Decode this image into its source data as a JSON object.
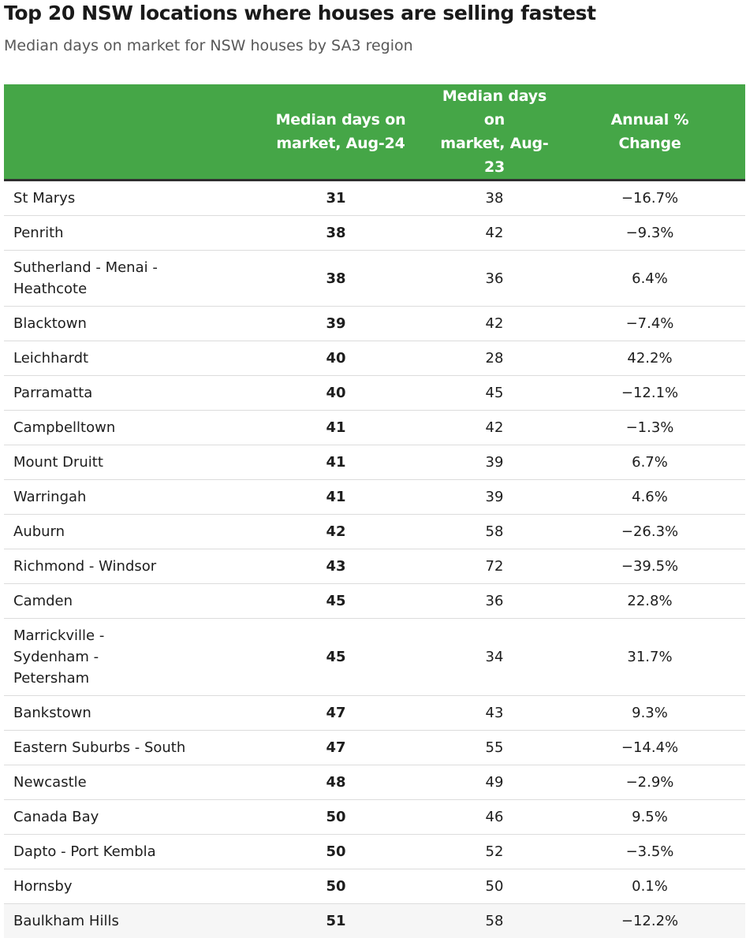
{
  "title": "Top 20 NSW locations where houses are selling fastest",
  "subtitle": "Median days on market for NSW houses by SA3 region",
  "colors": {
    "header_bg": "#45a647",
    "header_text": "#ffffff",
    "header_rule": "#2f2f2f",
    "row_divider": "#dcdcdc"
  },
  "chart_data": {
    "type": "table",
    "columns": [
      {
        "line1": "",
        "line2": ""
      },
      {
        "line1": "Median days on",
        "line2": "market, Aug-24"
      },
      {
        "line1": "Median days on",
        "line2": "market, Aug-23"
      },
      {
        "line1": "Annual %",
        "line2": "Change"
      }
    ],
    "rows": [
      {
        "location": "St Marys",
        "aug24": "31",
        "aug23": "38",
        "change": "−16.7%"
      },
      {
        "location": "Penrith",
        "aug24": "38",
        "aug23": "42",
        "change": "−9.3%"
      },
      {
        "location": "Sutherland - Menai - Heathcote",
        "aug24": "38",
        "aug23": "36",
        "change": "6.4%"
      },
      {
        "location": "Blacktown",
        "aug24": "39",
        "aug23": "42",
        "change": "−7.4%"
      },
      {
        "location": "Leichhardt",
        "aug24": "40",
        "aug23": "28",
        "change": "42.2%"
      },
      {
        "location": "Parramatta",
        "aug24": "40",
        "aug23": "45",
        "change": "−12.1%"
      },
      {
        "location": "Campbelltown",
        "aug24": "41",
        "aug23": "42",
        "change": "−1.3%"
      },
      {
        "location": "Mount Druitt",
        "aug24": "41",
        "aug23": "39",
        "change": "6.7%"
      },
      {
        "location": "Warringah",
        "aug24": "41",
        "aug23": "39",
        "change": "4.6%"
      },
      {
        "location": "Auburn",
        "aug24": "42",
        "aug23": "58",
        "change": "−26.3%"
      },
      {
        "location": "Richmond - Windsor",
        "aug24": "43",
        "aug23": "72",
        "change": "−39.5%"
      },
      {
        "location": "Camden",
        "aug24": "45",
        "aug23": "36",
        "change": "22.8%"
      },
      {
        "location": "Marrickville - Sydenham - Petersham",
        "aug24": "45",
        "aug23": "34",
        "change": "31.7%"
      },
      {
        "location": "Bankstown",
        "aug24": "47",
        "aug23": "43",
        "change": "9.3%"
      },
      {
        "location": "Eastern Suburbs - South",
        "aug24": "47",
        "aug23": "55",
        "change": "−14.4%"
      },
      {
        "location": "Newcastle",
        "aug24": "48",
        "aug23": "49",
        "change": "−2.9%"
      },
      {
        "location": "Canada Bay",
        "aug24": "50",
        "aug23": "46",
        "change": "9.5%"
      },
      {
        "location": "Dapto - Port Kembla",
        "aug24": "50",
        "aug23": "52",
        "change": "−3.5%"
      },
      {
        "location": "Hornsby",
        "aug24": "50",
        "aug23": "50",
        "change": "0.1%"
      },
      {
        "location": "Baulkham Hills",
        "aug24": "51",
        "aug23": "58",
        "change": "−12.2%"
      }
    ]
  }
}
